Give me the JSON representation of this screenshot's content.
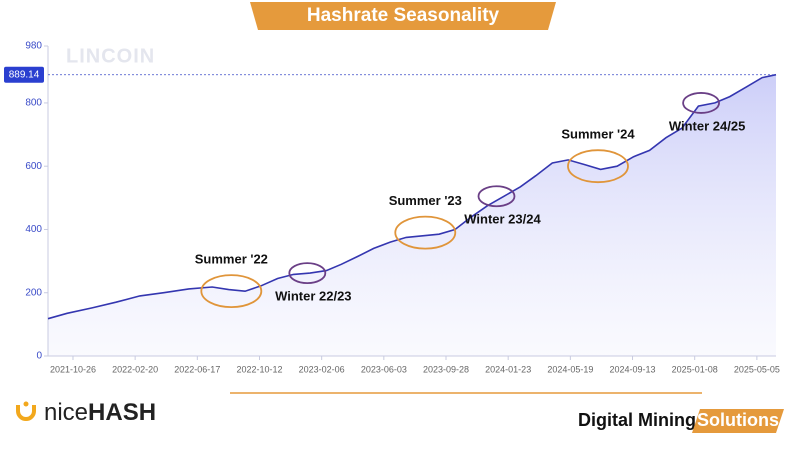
{
  "chart_data": {
    "type": "area",
    "title": "Hashrate Seasonality",
    "watermark": "LINCOIN",
    "color": "#3436b0",
    "x": [
      "2021-09-09",
      "2021-10-15",
      "2021-12-01",
      "2022-01-15",
      "2022-03-01",
      "2022-04-15",
      "2022-06-01",
      "2022-07-15",
      "2022-08-15",
      "2022-09-15",
      "2022-10-15",
      "2022-11-15",
      "2022-12-15",
      "2023-01-15",
      "2023-02-15",
      "2023-03-15",
      "2023-04-15",
      "2023-05-15",
      "2023-06-15",
      "2023-07-15",
      "2023-08-15",
      "2023-09-15",
      "2023-10-15",
      "2023-11-15",
      "2023-12-15",
      "2024-01-15",
      "2024-02-15",
      "2024-03-15",
      "2024-04-15",
      "2024-05-15",
      "2024-06-15",
      "2024-07-15",
      "2024-08-15",
      "2024-09-15",
      "2024-10-15",
      "2024-11-15",
      "2024-12-15",
      "2025-01-15",
      "2025-02-15",
      "2025-03-15",
      "2025-04-15",
      "2025-05-15",
      "2025-06-10"
    ],
    "values": [
      118,
      135,
      152,
      170,
      190,
      200,
      212,
      218,
      210,
      205,
      222,
      245,
      258,
      262,
      270,
      290,
      315,
      340,
      360,
      375,
      380,
      385,
      400,
      440,
      475,
      505,
      535,
      570,
      610,
      620,
      605,
      590,
      600,
      630,
      650,
      690,
      720,
      790,
      800,
      820,
      850,
      880,
      889.14
    ],
    "xlim": [
      "2021-09-09",
      "2025-06-10"
    ],
    "xticks": [
      "2021-10-26",
      "2022-02-20",
      "2022-06-17",
      "2022-10-12",
      "2023-02-06",
      "2023-06-03",
      "2023-09-28",
      "2024-01-23",
      "2024-05-19",
      "2024-09-13",
      "2025-01-08",
      "2025-05-05"
    ],
    "ylim": [
      0,
      980
    ],
    "yticks": [
      0,
      200,
      400,
      600,
      800,
      980
    ],
    "annotations": [
      {
        "text": "Summer '22",
        "x": "2022-08-20",
        "y": 205,
        "color": "#e0953a"
      },
      {
        "text": "Winter 22/23",
        "x": "2023-01-10",
        "y": 262,
        "color": "#6a3f86"
      },
      {
        "text": "Summer '23",
        "x": "2023-08-20",
        "y": 390,
        "color": "#e0953a"
      },
      {
        "text": "Winter 23/24",
        "x": "2024-01-01",
        "y": 505,
        "color": "#6a3f86"
      },
      {
        "text": "Summer '24",
        "x": "2024-07-10",
        "y": 600,
        "color": "#e0953a"
      },
      {
        "text": "Winter 24/25",
        "x": "2025-01-20",
        "y": 800,
        "color": "#6a3f86"
      }
    ]
  },
  "footer": {
    "logo_light": "nice",
    "logo_bold": "HASH",
    "tagline": "Digital Mining",
    "tagline_badge": "Solutions"
  }
}
